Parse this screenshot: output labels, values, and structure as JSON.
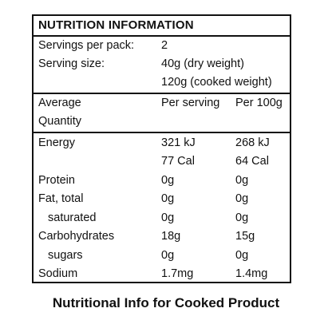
{
  "panel": {
    "title": "NUTRITION INFORMATION",
    "servings_label": "Servings per pack:",
    "servings_value": "2",
    "serving_size_label": "Serving size:",
    "serving_size_dry": "40g (dry weight)",
    "serving_size_cooked": "120g (cooked weight)",
    "header": {
      "col0_line1": "Average",
      "col0_line2": "Quantity",
      "col1": "Per serving",
      "col2": "Per 100g"
    },
    "rows": [
      {
        "label": "Energy",
        "per_serving": "321 kJ",
        "per_100g": "268 kJ"
      },
      {
        "label": "",
        "per_serving": "77 Cal",
        "per_100g": "64 Cal"
      },
      {
        "label": "Protein",
        "per_serving": "0g",
        "per_100g": "0g"
      },
      {
        "label": "Fat, total",
        "per_serving": "0g",
        "per_100g": "0g"
      },
      {
        "label": "saturated",
        "per_serving": "0g",
        "per_100g": "0g"
      },
      {
        "label": "Carbohydrates",
        "per_serving": "18g",
        "per_100g": "15g"
      },
      {
        "label": "sugars",
        "per_serving": "0g",
        "per_100g": "0g"
      },
      {
        "label": "Sodium",
        "per_serving": "1.7mg",
        "per_100g": "1.4mg"
      }
    ]
  },
  "caption": "Nutritional Info for Cooked Product"
}
